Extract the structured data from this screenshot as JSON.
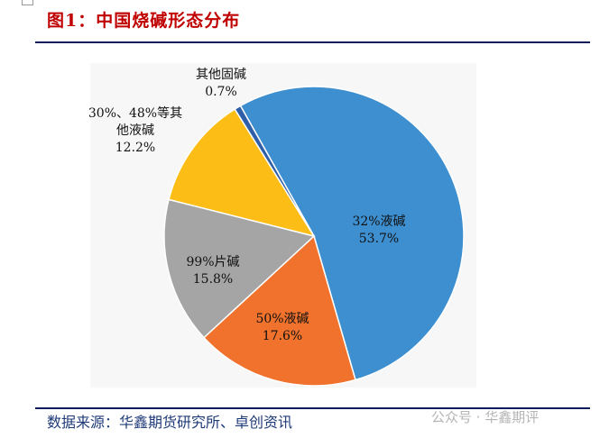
{
  "title": "图1：中国烧碱形态分布",
  "source": "数据来源：华鑫期货研究所、卓创资讯",
  "watermark": "公众号 · 华鑫期评",
  "chart_data": {
    "type": "pie",
    "title": "图1：中国烧碱形态分布",
    "start_angle_deg": -29.4,
    "slices": [
      {
        "name": "32%液碱",
        "value": 53.7,
        "label": "53.7%",
        "color": "#3d8fd0"
      },
      {
        "name": "50%液碱",
        "value": 17.6,
        "label": "17.6%",
        "color": "#f0722c"
      },
      {
        "name": "99%片碱",
        "value": 15.8,
        "label": "15.8%",
        "color": "#a5a5a5"
      },
      {
        "name": "30%、48%等其他液碱",
        "name_lines": [
          "30%、48%等其",
          "他液碱"
        ],
        "value": 12.2,
        "label": "12.2%",
        "color": "#fcbd17"
      },
      {
        "name": "其他固碱",
        "value": 0.7,
        "label": "0.7%",
        "color": "#2e5fa8"
      }
    ]
  }
}
